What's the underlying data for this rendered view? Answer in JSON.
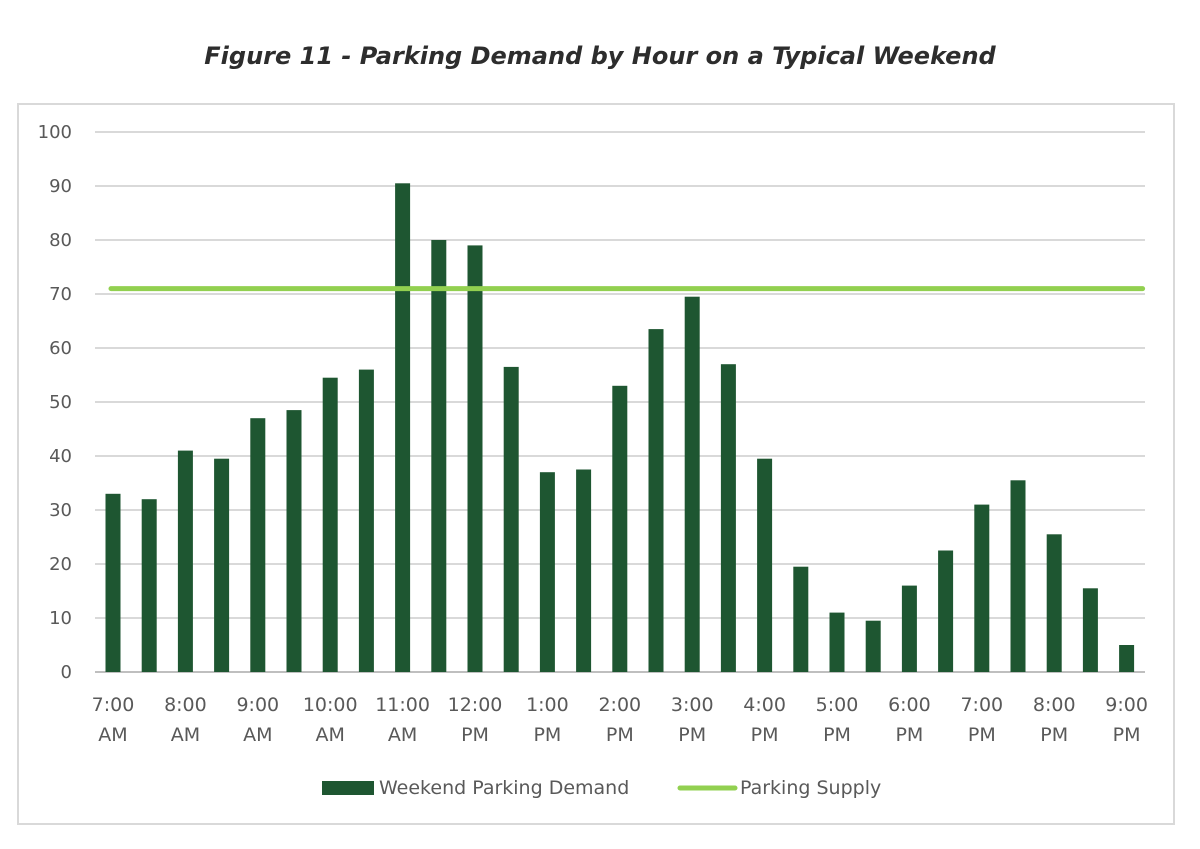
{
  "chart_data": {
    "type": "bar",
    "title": "Figure 11 - Parking Demand by Hour on a Typical Weekend",
    "categories": [
      [
        "7:00",
        "AM"
      ],
      [
        "",
        ""
      ],
      [
        "8:00",
        "AM"
      ],
      [
        "",
        ""
      ],
      [
        "9:00",
        "AM"
      ],
      [
        "",
        ""
      ],
      [
        "10:00",
        "AM"
      ],
      [
        "",
        ""
      ],
      [
        "11:00",
        "AM"
      ],
      [
        "",
        ""
      ],
      [
        "12:00",
        "PM"
      ],
      [
        "",
        ""
      ],
      [
        "1:00",
        "PM"
      ],
      [
        "",
        ""
      ],
      [
        "2:00",
        "PM"
      ],
      [
        "",
        ""
      ],
      [
        "3:00",
        "PM"
      ],
      [
        "",
        ""
      ],
      [
        "4:00",
        "PM"
      ],
      [
        "",
        ""
      ],
      [
        "5:00",
        "PM"
      ],
      [
        "",
        ""
      ],
      [
        "6:00",
        "PM"
      ],
      [
        "",
        ""
      ],
      [
        "7:00",
        "PM"
      ],
      [
        "",
        ""
      ],
      [
        "8:00",
        "PM"
      ],
      [
        "",
        ""
      ],
      [
        "9:00",
        "PM"
      ]
    ],
    "series": [
      {
        "name": "Weekend Parking Demand",
        "type": "bar",
        "color": "#1e5631",
        "values": [
          33,
          32,
          41,
          39.5,
          47,
          48.5,
          54.5,
          56,
          90.5,
          80,
          79,
          56.5,
          37,
          37.5,
          53,
          63.5,
          69.5,
          57,
          39.5,
          19.5,
          11,
          9.5,
          16,
          22.5,
          31,
          35.5,
          25.5,
          15.5,
          5
        ]
      },
      {
        "name": "Parking Supply",
        "type": "line",
        "color": "#92d050",
        "value": 71
      }
    ],
    "ylim": [
      0,
      100
    ],
    "yticks": [
      0,
      10,
      20,
      30,
      40,
      50,
      60,
      70,
      80,
      90,
      100
    ],
    "grid": true,
    "legend": "bottom"
  }
}
